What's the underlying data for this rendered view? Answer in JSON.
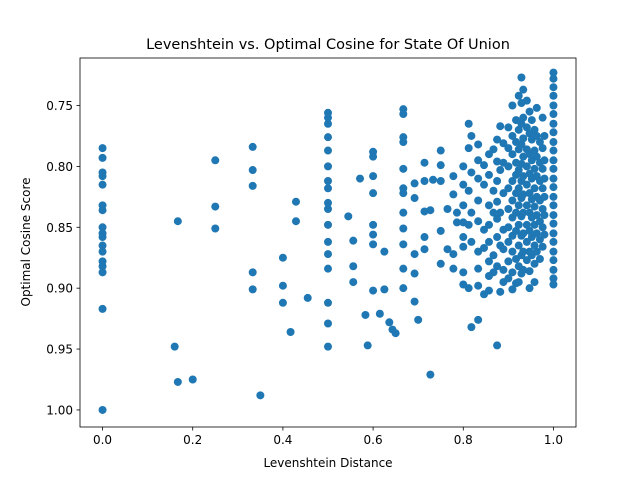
{
  "chart_data": {
    "type": "scatter",
    "title": "Levenshtein vs. Optimal Cosine for State Of Union",
    "x_label": "Levenshtein Distance",
    "y_label": "Optimal Cosine Score",
    "color": "#1f77b4",
    "xlim": [
      -0.05,
      1.05
    ],
    "ylim": [
      0.711,
      1.014
    ],
    "y_inverted": true,
    "xticks": [
      {
        "value": 0,
        "label": "0.0"
      },
      0.2,
      0.4,
      0.6,
      0.8,
      {
        "value": 1,
        "label": "1.0"
      }
    ],
    "yticks": [
      0.75,
      {
        "value": 0.8,
        "label": "0.80"
      },
      0.85,
      {
        "value": 0.9,
        "label": "0.90"
      },
      0.95,
      {
        "value": 1,
        "label": "1.00"
      }
    ],
    "x": [
      0,
      0,
      0,
      0,
      0,
      0,
      0,
      0,
      0,
      0,
      0,
      0,
      0,
      0,
      0,
      0,
      0,
      0.16,
      0.167,
      0.167,
      0.2,
      0.25,
      0.25,
      0.25,
      0.333,
      0.333,
      0.333,
      0.333,
      0.333,
      0.35,
      0.4,
      0.4,
      0.4,
      0.417,
      0.429,
      0.429,
      0.455,
      0.5,
      0.5,
      0.5,
      0.5,
      0.5,
      0.5,
      0.5,
      0.5,
      0.5,
      0.5,
      0.5,
      0.5,
      0.5,
      0.5,
      0.5,
      0.5,
      0.5,
      0.545,
      0.556,
      0.556,
      0.556,
      0.571,
      0.583,
      0.588,
      0.6,
      0.6,
      0.6,
      0.6,
      0.6,
      0.6,
      0.6,
      0.6,
      0.615,
      0.625,
      0.625,
      0.636,
      0.643,
      0.65,
      0.667,
      0.667,
      0.667,
      0.667,
      0.667,
      0.667,
      0.667,
      0.667,
      0.667,
      0.667,
      0.667,
      0.667,
      0.692,
      0.692,
      0.692,
      0.692,
      0.692,
      0.7,
      0.714,
      0.714,
      0.714,
      0.714,
      0.714,
      0.727,
      0.727,
      0.733,
      0.75,
      0.75,
      0.75,
      0.75,
      0.75,
      0.765,
      0.765,
      0.778,
      0.778,
      0.778,
      0.778,
      0.786,
      0.786,
      0.8,
      0.8,
      0.8,
      0.8,
      0.8,
      0.8,
      0.8,
      0.8,
      0.812,
      0.812,
      0.812,
      0.812,
      0.812,
      0.818,
      0.818,
      0.818,
      0.818,
      0.818,
      0.833,
      0.833,
      0.833,
      0.833,
      0.833,
      0.833,
      0.833,
      0.833,
      0.833,
      0.846,
      0.846,
      0.846,
      0.846,
      0.846,
      0.857,
      0.857,
      0.857,
      0.857,
      0.857,
      0.857,
      0.857,
      0.857,
      0.867,
      0.867,
      0.867,
      0.867,
      0.867,
      0.875,
      0.875,
      0.875,
      0.875,
      0.875,
      0.875,
      0.875,
      0.875,
      0.882,
      0.882,
      0.882,
      0.882,
      0.882,
      0.889,
      0.889,
      0.889,
      0.889,
      0.889,
      0.889,
      0.889,
      0.9,
      0.9,
      0.9,
      0.9,
      0.9,
      0.9,
      0.9,
      0.9,
      0.9,
      0.909,
      0.909,
      0.909,
      0.909,
      0.909,
      0.909,
      0.909,
      0.909,
      0.909,
      0.909,
      0.917,
      0.917,
      0.917,
      0.917,
      0.917,
      0.917,
      0.917,
      0.917,
      0.917,
      0.923,
      0.923,
      0.923,
      0.923,
      0.923,
      0.923,
      0.923,
      0.923,
      0.923,
      0.923,
      0.929,
      0.929,
      0.929,
      0.929,
      0.929,
      0.929,
      0.929,
      0.929,
      0.929,
      0.929,
      0.929,
      0.933,
      0.933,
      0.933,
      0.933,
      0.933,
      0.933,
      0.933,
      0.933,
      0.933,
      0.933,
      0.941,
      0.941,
      0.941,
      0.941,
      0.941,
      0.941,
      0.941,
      0.941,
      0.941,
      0.947,
      0.947,
      0.947,
      0.947,
      0.947,
      0.947,
      0.947,
      0.947,
      0.947,
      0.947,
      0.952,
      0.952,
      0.952,
      0.952,
      0.952,
      0.952,
      0.952,
      0.952,
      0.958,
      0.958,
      0.958,
      0.958,
      0.958,
      0.958,
      0.958,
      0.958,
      0.958,
      0.963,
      0.963,
      0.963,
      0.963,
      0.963,
      0.963,
      0.963,
      0.963,
      0.97,
      0.97,
      0.97,
      0.97,
      0.97,
      0.97,
      0.97,
      0.976,
      0.976,
      0.976,
      0.976,
      0.976,
      0.976,
      0.976,
      0.98,
      0.98,
      0.98,
      0.98,
      0.98,
      0.98,
      1,
      1,
      1,
      1,
      1,
      1,
      1,
      1,
      1,
      1,
      1,
      1,
      1,
      1,
      1,
      1,
      1,
      1,
      1,
      1,
      1,
      1,
      1,
      1,
      1
    ],
    "values": [
      0.785,
      0.793,
      0.805,
      0.808,
      0.815,
      0.832,
      0.836,
      0.85,
      0.855,
      0.858,
      0.865,
      0.87,
      0.878,
      0.882,
      0.887,
      0.917,
      1.0,
      0.948,
      0.845,
      0.977,
      0.975,
      0.795,
      0.833,
      0.851,
      0.784,
      0.803,
      0.816,
      0.887,
      0.901,
      0.988,
      0.875,
      0.898,
      0.912,
      0.936,
      0.829,
      0.845,
      0.908,
      0.756,
      0.76,
      0.765,
      0.776,
      0.787,
      0.8,
      0.812,
      0.818,
      0.83,
      0.835,
      0.848,
      0.862,
      0.872,
      0.884,
      0.912,
      0.929,
      0.948,
      0.841,
      0.861,
      0.882,
      0.895,
      0.81,
      0.922,
      0.947,
      0.788,
      0.792,
      0.808,
      0.822,
      0.848,
      0.856,
      0.864,
      0.902,
      0.921,
      0.87,
      0.901,
      0.928,
      0.934,
      0.937,
      0.753,
      0.757,
      0.776,
      0.78,
      0.802,
      0.818,
      0.822,
      0.838,
      0.851,
      0.864,
      0.884,
      0.9,
      0.814,
      0.826,
      0.872,
      0.888,
      0.911,
      0.926,
      0.797,
      0.812,
      0.837,
      0.858,
      0.868,
      0.836,
      0.971,
      0.811,
      0.787,
      0.799,
      0.812,
      0.853,
      0.88,
      0.835,
      0.868,
      0.808,
      0.823,
      0.872,
      0.884,
      0.838,
      0.846,
      0.8,
      0.815,
      0.832,
      0.846,
      0.858,
      0.866,
      0.887,
      0.897,
      0.765,
      0.785,
      0.82,
      0.848,
      0.9,
      0.775,
      0.805,
      0.838,
      0.862,
      0.932,
      0.782,
      0.795,
      0.81,
      0.828,
      0.845,
      0.87,
      0.884,
      0.898,
      0.926,
      0.799,
      0.815,
      0.852,
      0.867,
      0.905,
      0.79,
      0.807,
      0.832,
      0.848,
      0.862,
      0.878,
      0.89,
      0.902,
      0.786,
      0.82,
      0.838,
      0.873,
      0.887,
      0.778,
      0.796,
      0.812,
      0.829,
      0.843,
      0.858,
      0.882,
      0.947,
      0.767,
      0.803,
      0.838,
      0.865,
      0.903,
      0.781,
      0.797,
      0.822,
      0.852,
      0.868,
      0.885,
      0.895,
      0.768,
      0.785,
      0.8,
      0.818,
      0.835,
      0.85,
      0.862,
      0.878,
      0.892,
      0.75,
      0.775,
      0.79,
      0.812,
      0.828,
      0.842,
      0.857,
      0.87,
      0.887,
      0.901,
      0.762,
      0.78,
      0.797,
      0.807,
      0.822,
      0.838,
      0.853,
      0.876,
      0.896,
      0.742,
      0.77,
      0.786,
      0.803,
      0.818,
      0.832,
      0.848,
      0.865,
      0.882,
      0.895,
      0.727,
      0.748,
      0.765,
      0.782,
      0.798,
      0.812,
      0.826,
      0.841,
      0.857,
      0.873,
      0.888,
      0.737,
      0.76,
      0.777,
      0.792,
      0.808,
      0.823,
      0.838,
      0.855,
      0.87,
      0.885,
      0.746,
      0.768,
      0.786,
      0.8,
      0.815,
      0.832,
      0.848,
      0.862,
      0.877,
      0.755,
      0.773,
      0.79,
      0.806,
      0.822,
      0.838,
      0.853,
      0.87,
      0.886,
      0.9,
      0.762,
      0.778,
      0.795,
      0.81,
      0.827,
      0.842,
      0.858,
      0.873,
      0.77,
      0.787,
      0.802,
      0.818,
      0.833,
      0.848,
      0.865,
      0.88,
      0.895,
      0.752,
      0.775,
      0.792,
      0.808,
      0.825,
      0.84,
      0.855,
      0.87,
      0.78,
      0.797,
      0.812,
      0.828,
      0.845,
      0.86,
      0.876,
      0.76,
      0.785,
      0.802,
      0.818,
      0.835,
      0.85,
      0.866,
      0.775,
      0.795,
      0.81,
      0.825,
      0.84,
      0.856,
      0.723,
      0.728,
      0.735,
      0.742,
      0.75,
      0.757,
      0.765,
      0.772,
      0.78,
      0.787,
      0.795,
      0.802,
      0.81,
      0.817,
      0.825,
      0.832,
      0.84,
      0.847,
      0.855,
      0.862,
      0.87,
      0.877,
      0.885,
      0.892,
      0.897
    ]
  }
}
